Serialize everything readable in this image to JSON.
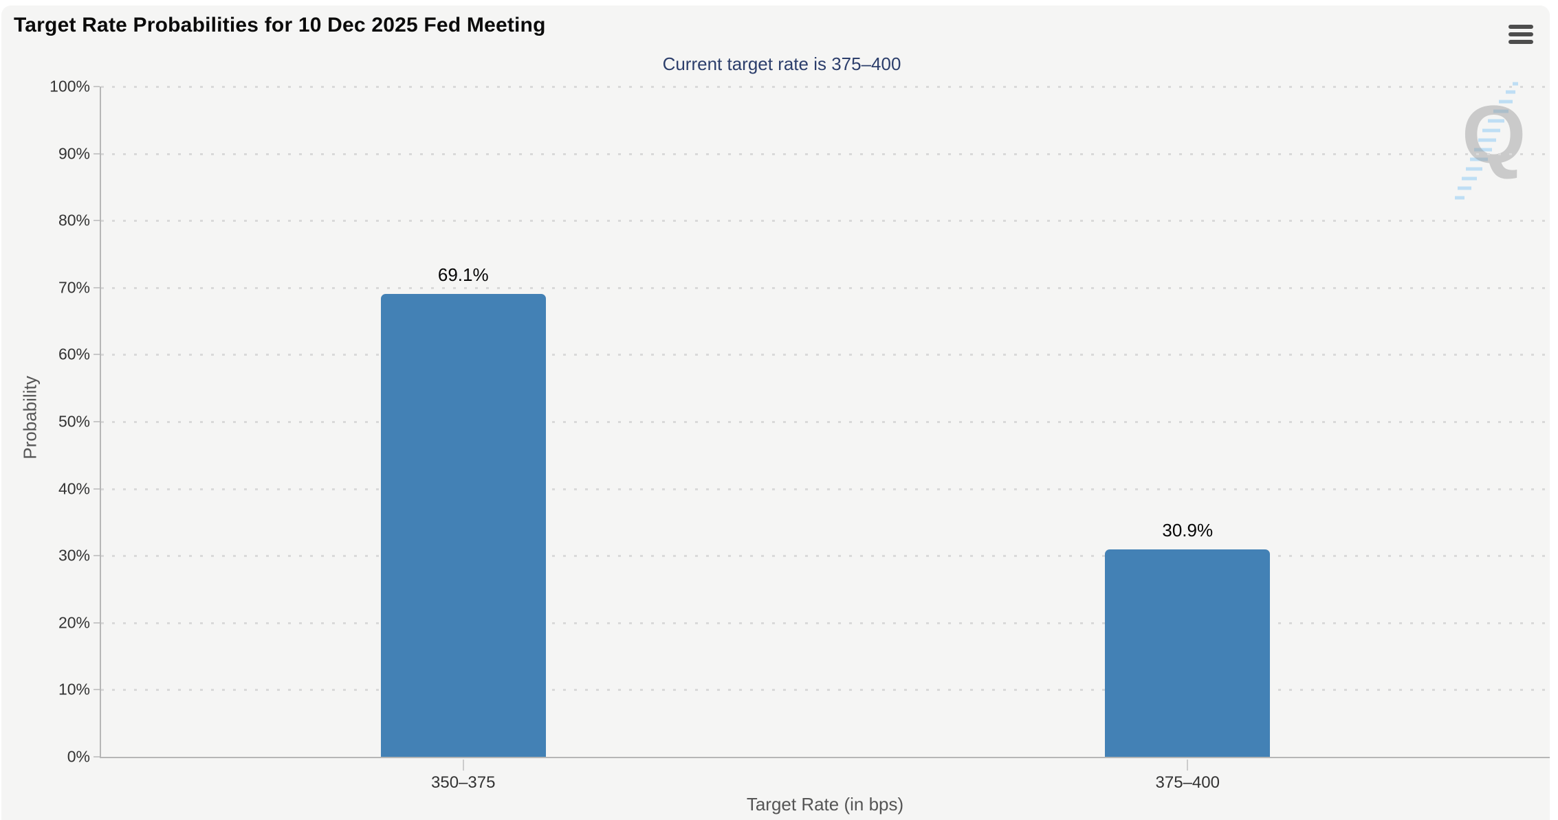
{
  "chart_data": {
    "type": "bar",
    "title": "Target Rate Probabilities for 10 Dec 2025 Fed Meeting",
    "subtitle": "Current target rate is 375–400",
    "categories": [
      "350–375",
      "375–400"
    ],
    "values": [
      69.1,
      30.9
    ],
    "value_labels": [
      "69.1%",
      "30.9%"
    ],
    "xlabel": "Target Rate (in bps)",
    "ylabel": "Probability",
    "ylim": [
      0,
      100
    ],
    "ytick_step": 10,
    "ytick_suffix": "%",
    "grid": "horizontal-dotted",
    "legend_position": "none",
    "colors": {
      "bar": "#4381b5",
      "subtitle_text": "#2c3e6b",
      "axis_line": "#b6b6b6",
      "grid_dot": "#d9d9d9",
      "tick_label": "#333333",
      "axis_title": "#555555",
      "panel_background": "#f5f5f4"
    }
  },
  "icons": {
    "menu": "hamburger",
    "watermark_hatch": "diagonal-blue-dashes"
  },
  "watermark": {
    "letter": "Q"
  }
}
